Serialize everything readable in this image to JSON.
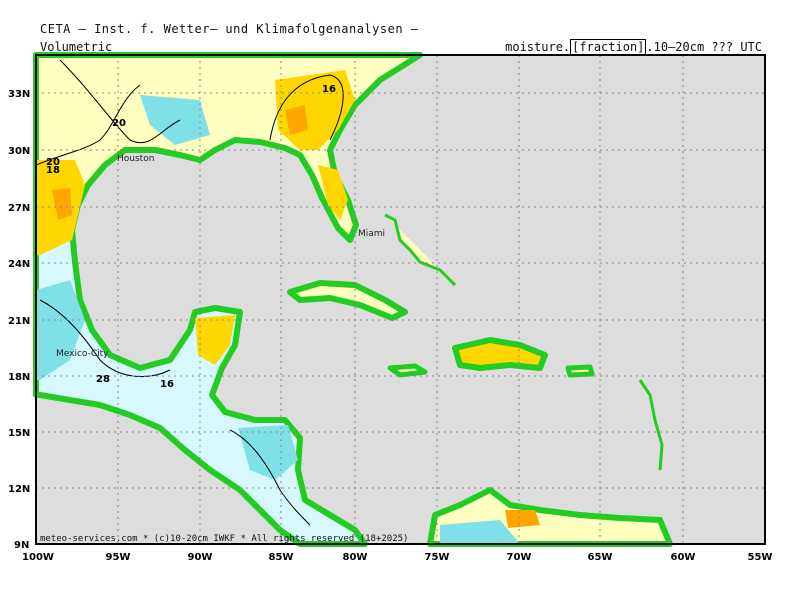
{
  "header": {
    "title": "CETA — Inst. f. Wetter— und Klimafolgenanalysen —",
    "left": "Volumetric",
    "right_prefix": "moisture.",
    "right_box": "[fraction]",
    "right_suffix": ".10—20cm ??? UTC"
  },
  "footer": "meteo-services.com * (c)10-20cm IWKF * All rights reserved (18+2025)",
  "axes": {
    "lon_labels": [
      "100W",
      "95W",
      "90W",
      "85W",
      "80W",
      "75W",
      "70W",
      "65W",
      "60W",
      "55W"
    ],
    "lat_labels": [
      "33N",
      "30N",
      "27N",
      "24N",
      "21N",
      "18N",
      "15N",
      "12N",
      "9N"
    ]
  },
  "cities": [
    "Houston",
    "Miami",
    "Mexico-City"
  ],
  "contour_labels": [
    "16",
    "20",
    "20",
    "18",
    "28",
    "16"
  ],
  "colors": {
    "ocean": "#dddddd",
    "coast_green": "#22cc22",
    "dry": "#ffa500",
    "mid": "#ffd700",
    "light": "#ffffc0",
    "wet_light": "#d8f8ff",
    "wet": "#80e0e8",
    "very_wet": "#40b8e0"
  }
}
